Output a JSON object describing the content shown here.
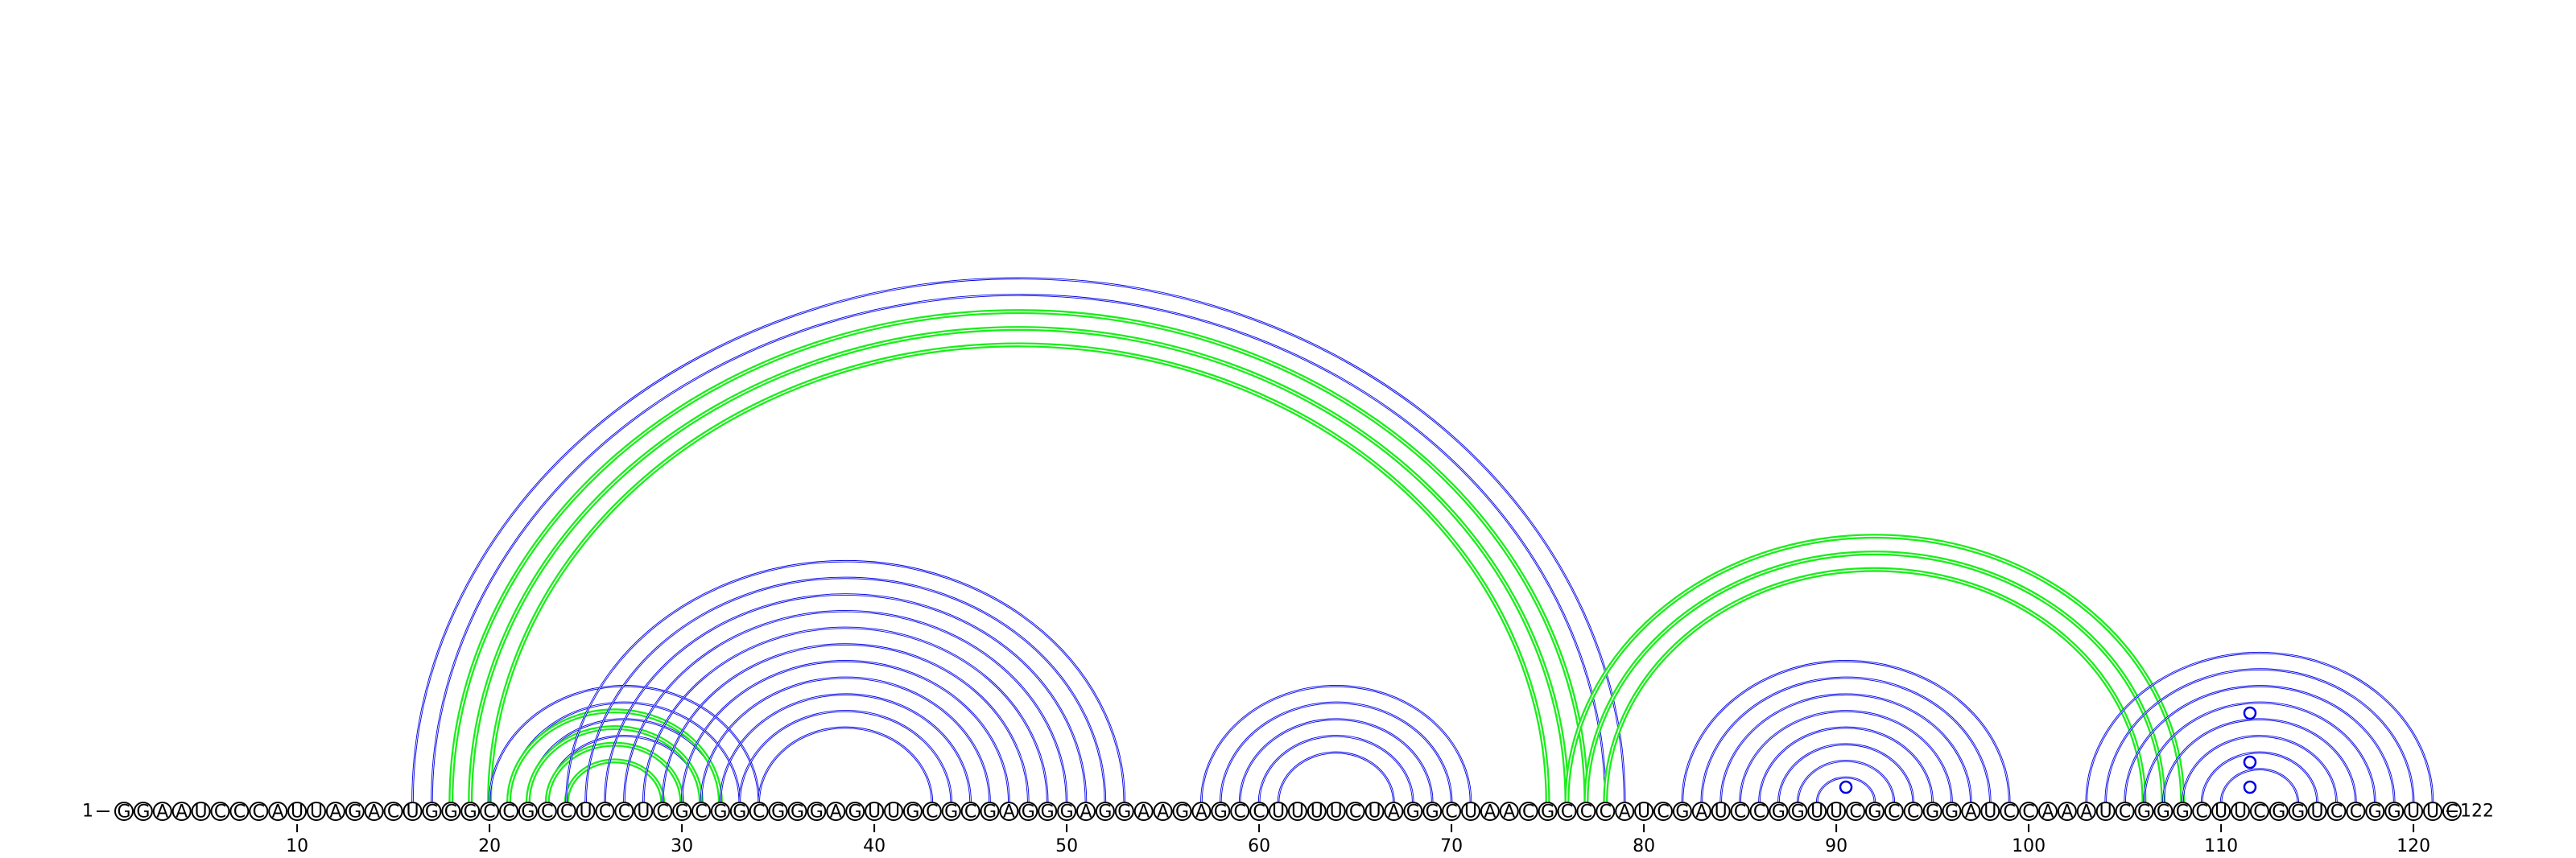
{
  "sequence": "GGAAUCCCAUUAGACUGGGCCGCCUCCUCGCGGCGGGAGUUGCGCGAGGGAGGAAGAGCCUUUUCUAGGCUAACGCCCAUCGAUCCGGUUCGCCGGAUCCAAAUCGGGCUUCGGUCCGGUUC",
  "start_label": "1",
  "end_label": "122",
  "tick_labels": [
    "10",
    "20",
    "30",
    "40",
    "50",
    "60",
    "70",
    "80",
    "90",
    "100",
    "110",
    "120"
  ],
  "colors": {
    "blue": "#0000e6",
    "green": "#1aee1a"
  },
  "arc_groups": [
    {
      "color": "blue",
      "pairs": [
        [
          16,
          79
        ],
        [
          17,
          78
        ]
      ]
    },
    {
      "color": "green",
      "pairs": [
        [
          18,
          77
        ],
        [
          19,
          76
        ],
        [
          20,
          75
        ]
      ]
    },
    {
      "color": "blue",
      "pairs": [
        [
          20,
          34
        ],
        [
          21,
          33
        ],
        [
          22,
          32
        ],
        [
          23,
          31
        ]
      ]
    },
    {
      "color": "green",
      "pairs": [
        [
          21,
          32
        ],
        [
          22,
          31
        ],
        [
          23,
          30
        ],
        [
          24,
          29
        ]
      ]
    },
    {
      "color": "blue",
      "pairs": [
        [
          24,
          53
        ],
        [
          25,
          52
        ],
        [
          26,
          51
        ],
        [
          27,
          50
        ],
        [
          28,
          49
        ],
        [
          29,
          48
        ],
        [
          30,
          47
        ],
        [
          31,
          46
        ],
        [
          32,
          45
        ],
        [
          33,
          44
        ],
        [
          34,
          43
        ]
      ]
    },
    {
      "color": "blue",
      "pairs": [
        [
          57,
          71
        ],
        [
          58,
          70
        ],
        [
          59,
          69
        ],
        [
          60,
          68
        ],
        [
          61,
          67
        ]
      ]
    },
    {
      "color": "green",
      "pairs": [
        [
          76,
          108
        ],
        [
          77,
          107
        ],
        [
          78,
          106
        ]
      ]
    },
    {
      "color": "blue",
      "pairs": [
        [
          82,
          99
        ],
        [
          83,
          98
        ],
        [
          84,
          97
        ],
        [
          85,
          96
        ],
        [
          86,
          95
        ],
        [
          87,
          94
        ],
        [
          88,
          93
        ],
        [
          89,
          92
        ]
      ]
    },
    {
      "color": "blue",
      "pairs": [
        [
          103,
          121
        ],
        [
          104,
          120
        ],
        [
          105,
          119
        ],
        [
          106,
          118
        ],
        [
          107,
          117
        ],
        [
          108,
          116
        ],
        [
          109,
          115
        ],
        [
          110,
          114
        ]
      ]
    }
  ],
  "markers": [
    {
      "color": "blue",
      "i": 90,
      "j": 91
    },
    {
      "color": "blue",
      "i": 111,
      "j": 112,
      "level": 1
    },
    {
      "color": "blue",
      "i": 111,
      "j": 112,
      "level": 2
    },
    {
      "color": "blue",
      "i": 111,
      "j": 112,
      "level": 3
    }
  ]
}
